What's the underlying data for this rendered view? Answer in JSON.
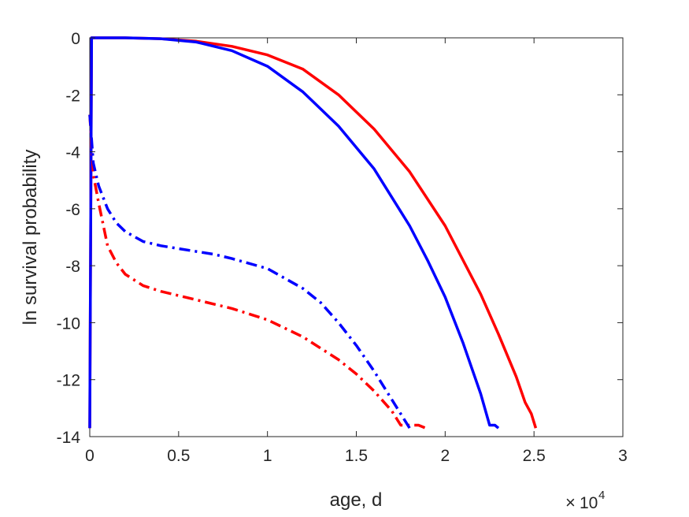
{
  "chart_data": {
    "type": "line",
    "title": "",
    "xlabel": "age, d",
    "ylabel": "ln survival probability",
    "x_multiplier": {
      "base": "10",
      "exponent": "4"
    },
    "xlim": [
      0,
      30000
    ],
    "ylim": [
      -14,
      0
    ],
    "xticks": [
      0,
      5000,
      10000,
      15000,
      20000,
      25000,
      30000
    ],
    "xtick_labels": [
      "0",
      "0.5",
      "1",
      "1.5",
      "2",
      "2.5",
      "3"
    ],
    "yticks": [
      0,
      -2,
      -4,
      -6,
      -8,
      -10,
      -12,
      -14
    ],
    "ytick_labels": [
      "0",
      "-2",
      "-4",
      "-6",
      "-8",
      "-10",
      "-12",
      "-14"
    ],
    "grid": false,
    "legend": "none",
    "series": [
      {
        "color": "#ff0000",
        "style": "solid",
        "x": [
          0,
          100,
          2000,
          4000,
          6000,
          8000,
          10000,
          12000,
          14000,
          16000,
          18000,
          20000,
          22000,
          23000,
          24000,
          24500,
          24850,
          25100
        ],
        "y": [
          -13.7,
          0,
          0,
          -0.03,
          -0.12,
          -0.3,
          -0.6,
          -1.1,
          -2.0,
          -3.2,
          -4.7,
          -6.6,
          -9.0,
          -10.4,
          -11.9,
          -12.8,
          -13.2,
          -13.7
        ]
      },
      {
        "color": "#0000ff",
        "style": "solid",
        "x": [
          0,
          100,
          2000,
          4000,
          6000,
          8000,
          10000,
          12000,
          14000,
          16000,
          18000,
          19000,
          20000,
          21000,
          21500,
          22000,
          22500,
          22800,
          23000
        ],
        "y": [
          -13.7,
          0,
          0,
          -0.03,
          -0.15,
          -0.45,
          -1.0,
          -1.9,
          -3.1,
          -4.6,
          -6.6,
          -7.8,
          -9.1,
          -10.7,
          -11.6,
          -12.5,
          -13.6,
          -13.6,
          -13.7
        ]
      },
      {
        "color": "#ff0000",
        "style": "dashdot",
        "x": [
          0,
          200,
          500,
          1000,
          1500,
          2000,
          3000,
          4000,
          5000,
          6000,
          8000,
          10000,
          12000,
          14000,
          15000,
          16000,
          17000,
          17500,
          18000,
          18500,
          18900
        ],
        "y": [
          -2.7,
          -4.8,
          -5.8,
          -7.3,
          -7.9,
          -8.3,
          -8.7,
          -8.9,
          -9.05,
          -9.2,
          -9.5,
          -9.9,
          -10.5,
          -11.3,
          -11.8,
          -12.4,
          -13.1,
          -13.6,
          -13.6,
          -13.6,
          -13.7
        ]
      },
      {
        "color": "#0000ff",
        "style": "dashdot",
        "x": [
          0,
          200,
          500,
          1000,
          1500,
          2000,
          3000,
          4000,
          5000,
          6000,
          7000,
          8000,
          10000,
          12000,
          13000,
          14000,
          15000,
          16000,
          17000,
          17500,
          18000
        ],
        "y": [
          -2.7,
          -4.4,
          -5.2,
          -6.0,
          -6.5,
          -6.8,
          -7.15,
          -7.3,
          -7.4,
          -7.5,
          -7.6,
          -7.75,
          -8.1,
          -8.8,
          -9.3,
          -10.0,
          -10.8,
          -11.7,
          -12.7,
          -13.2,
          -13.7
        ]
      }
    ]
  }
}
